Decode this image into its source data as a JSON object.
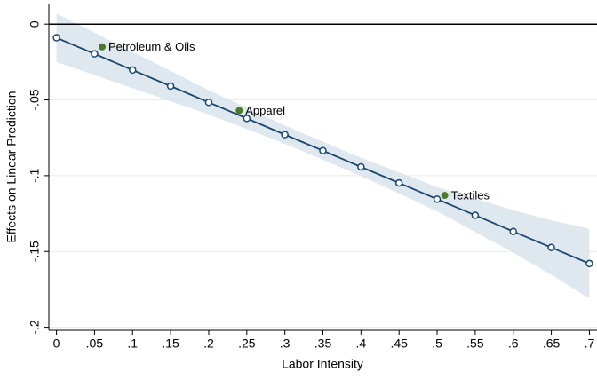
{
  "chart_data": {
    "type": "line",
    "x_label": "Labor Intensity",
    "y_label": "Effects on Linear Prediction",
    "x": [
      0,
      0.05,
      0.1,
      0.15,
      0.2,
      0.25,
      0.3,
      0.35,
      0.4,
      0.45,
      0.5,
      0.55,
      0.6,
      0.65,
      0.7
    ],
    "series": [
      {
        "color": "#1a476f",
        "values": [
          -0.009,
          -0.0196,
          -0.0303,
          -0.0409,
          -0.0516,
          -0.0622,
          -0.0729,
          -0.0835,
          -0.0942,
          -0.1048,
          -0.1155,
          -0.1261,
          -0.1368,
          -0.1474,
          -0.158
        ]
      }
    ],
    "band": {
      "color": "#d9e3ec",
      "lower": [
        -0.025,
        -0.0336,
        -0.0423,
        -0.0509,
        -0.0596,
        -0.0692,
        -0.0789,
        -0.0895,
        -0.1002,
        -0.1118,
        -0.1235,
        -0.1371,
        -0.1508,
        -0.1654,
        -0.181
      ],
      "upper": [
        0.007,
        -0.0056,
        -0.0183,
        -0.0309,
        -0.0436,
        -0.0552,
        -0.0669,
        -0.0775,
        -0.0882,
        -0.0978,
        -0.1075,
        -0.1151,
        -0.1228,
        -0.1294,
        -0.135
      ]
    },
    "points": [
      {
        "label": "Petroleum & Oils",
        "x": 0.06,
        "y": -0.015
      },
      {
        "label": "Apparel",
        "x": 0.24,
        "y": -0.057
      },
      {
        "label": "Textiles",
        "x": 0.51,
        "y": -0.113
      }
    ],
    "points_color": "#4a7a2a",
    "reference_line": 0,
    "xlim": [
      -0.01,
      0.71
    ],
    "ylim": [
      -0.202,
      0.013
    ],
    "xticks": [
      0,
      {
        "value": 0.05,
        "label": ".05"
      },
      {
        "value": 0.1,
        "label": ".1"
      },
      {
        "value": 0.15,
        "label": ".15"
      },
      {
        "value": 0.2,
        "label": ".2"
      },
      {
        "value": 0.25,
        "label": ".25"
      },
      {
        "value": 0.3,
        "label": ".3"
      },
      {
        "value": 0.35,
        "label": ".35"
      },
      {
        "value": 0.4,
        "label": ".4"
      },
      {
        "value": 0.45,
        "label": ".45"
      },
      {
        "value": 0.5,
        "label": ".5"
      },
      {
        "value": 0.55,
        "label": ".55"
      },
      {
        "value": 0.6,
        "label": ".6"
      },
      {
        "value": 0.65,
        "label": ".65"
      },
      {
        "value": 0.7,
        "label": ".7"
      }
    ],
    "yticks": [
      0,
      {
        "value": -0.05,
        "label": "-.05"
      },
      {
        "value": -0.1,
        "label": "-.1"
      },
      {
        "value": -0.15,
        "label": "-.15"
      },
      {
        "value": -0.2,
        "label": "-.2"
      }
    ],
    "grid": true
  }
}
